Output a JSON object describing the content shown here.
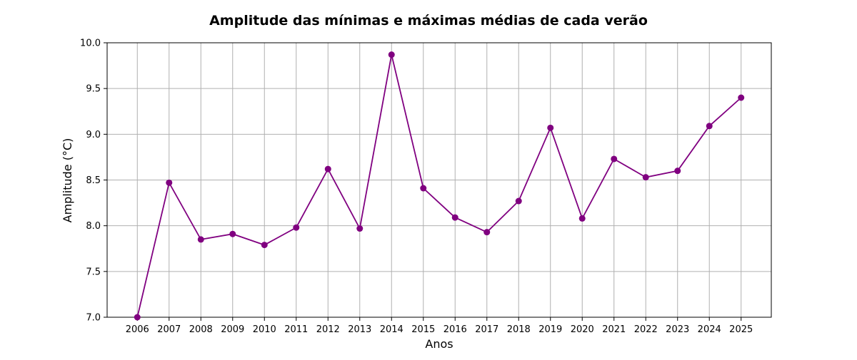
{
  "chart_data": {
    "type": "line",
    "title": "Amplitude das mínimas e máximas médias de cada verão",
    "xlabel": "Anos",
    "ylabel": "Amplitude (°C)",
    "x": [
      2006,
      2007,
      2008,
      2009,
      2010,
      2011,
      2012,
      2013,
      2014,
      2015,
      2016,
      2017,
      2018,
      2019,
      2020,
      2021,
      2022,
      2023,
      2024,
      2025
    ],
    "x_tick_labels": [
      "2006",
      "2007",
      "2008",
      "2009",
      "2010",
      "2011",
      "2012",
      "2013",
      "2014",
      "2015",
      "2016",
      "2017",
      "2018",
      "2019",
      "2020",
      "2021",
      "2022",
      "2023",
      "2024",
      "2025"
    ],
    "series": [
      {
        "values": [
          7.0,
          8.47,
          7.85,
          7.91,
          7.79,
          7.98,
          8.62,
          7.97,
          9.87,
          8.41,
          8.09,
          7.93,
          8.27,
          9.07,
          8.08,
          8.73,
          8.53,
          8.6,
          9.09,
          9.4
        ],
        "color": "#800080"
      }
    ],
    "ylim": [
      7.0,
      10.0
    ],
    "y_ticks": [
      7.0,
      7.5,
      8.0,
      8.5,
      9.0,
      9.5,
      10.0
    ],
    "y_tick_labels": [
      "7.0",
      "7.5",
      "8.0",
      "8.5",
      "9.0",
      "9.5",
      "10.0"
    ],
    "grid": true,
    "grid_color": "#b0b0b0",
    "marker": "circle"
  }
}
